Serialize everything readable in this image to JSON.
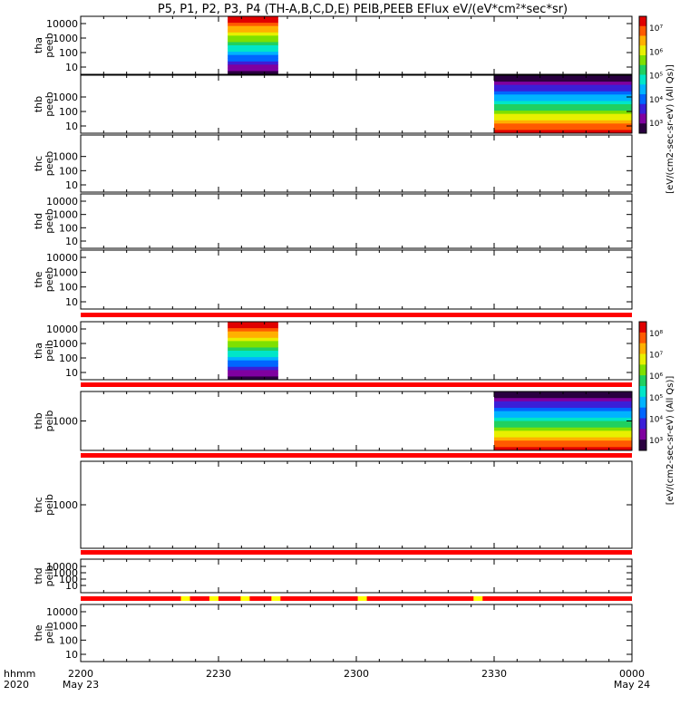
{
  "chart_data": {
    "type": "heatmap",
    "title": "P5, P1, P2, P3, P4 (TH-A,B,C,D,E) PEIB,PEEB EFlux eV/(eV*cm²*sec*sr)",
    "x_tick_labels": [
      "2200",
      "2230",
      "2300",
      "2330",
      "0000"
    ],
    "x_tick_values": [
      0,
      30,
      60,
      90,
      120
    ],
    "x_date_labels": [
      {
        "at": 0,
        "text": "May 23"
      },
      {
        "at": 120,
        "text": "May 24"
      }
    ],
    "time_axis_labels": {
      "top": "hhmm",
      "bottom": "2020"
    },
    "xlim": [
      0,
      120
    ],
    "panels": [
      {
        "id": "tha_peeb",
        "probe": "tha",
        "instrument": "peeb",
        "y_ticks": [
          "10000",
          "1000",
          "100",
          "10"
        ],
        "y_values": [
          10000,
          1000,
          100,
          10
        ],
        "ylog": true,
        "data_span": [
          32,
          43
        ]
      },
      {
        "id": "thb_peeb",
        "probe": "thb",
        "instrument": "peeb",
        "y_ticks": [
          "1000",
          "100",
          "10"
        ],
        "y_values": [
          1000,
          100,
          10
        ],
        "ylog": true,
        "data_span": [
          90,
          120
        ]
      },
      {
        "id": "thc_peeb",
        "probe": "thc",
        "instrument": "peeb",
        "y_ticks": [
          "1000",
          "100",
          "10"
        ],
        "y_values": [
          1000,
          100,
          10
        ],
        "ylog": true,
        "data_span": null
      },
      {
        "id": "thd_peeb",
        "probe": "thd",
        "instrument": "peeb",
        "y_ticks": [
          "10000",
          "1000",
          "100",
          "10"
        ],
        "y_values": [
          10000,
          1000,
          100,
          10
        ],
        "ylog": true,
        "data_span": null
      },
      {
        "id": "the_peeb",
        "probe": "the",
        "instrument": "peeb",
        "y_ticks": [
          "10000",
          "1000",
          "100",
          "10"
        ],
        "y_values": [
          10000,
          1000,
          100,
          10
        ],
        "ylog": true,
        "data_span": null
      },
      {
        "id": "tha_peib",
        "probe": "tha",
        "instrument": "peib",
        "y_ticks": [
          "10000",
          "1000",
          "100",
          "10"
        ],
        "y_values": [
          10000,
          1000,
          100,
          10
        ],
        "ylog": true,
        "data_span": [
          32,
          43
        ]
      },
      {
        "id": "thb_peib",
        "probe": "thb",
        "instrument": "peib",
        "y_ticks": [
          "1000"
        ],
        "y_values": [
          1000
        ],
        "ylog": true,
        "data_span": [
          90,
          120
        ]
      },
      {
        "id": "thc_peib",
        "probe": "thc",
        "instrument": "peib",
        "y_ticks": [
          "1000"
        ],
        "y_values": [
          1000
        ],
        "ylog": true,
        "data_span": null
      },
      {
        "id": "thd_peib",
        "probe": "thd",
        "instrument": "peib",
        "y_ticks": [
          "10000",
          "1000",
          "100",
          "10"
        ],
        "y_values": [
          10000,
          1000,
          100,
          10
        ],
        "ylog": true,
        "data_span": null
      },
      {
        "id": "the_peib",
        "probe": "the",
        "instrument": "peib",
        "y_ticks": [
          "10000",
          "1000",
          "100",
          "10"
        ],
        "y_values": [
          10000,
          1000,
          100,
          10
        ],
        "ylog": true,
        "data_span": null
      }
    ],
    "flag_bars": [
      {
        "after_panel": "the_peeb",
        "color": "#ff0000",
        "highlights": []
      },
      {
        "after_panel": "tha_peib",
        "color": "#ff0000",
        "highlights": []
      },
      {
        "after_panel": "thb_peib",
        "color": "#ff0000",
        "highlights": []
      },
      {
        "after_panel": "thc_peib",
        "color": "#ff0000",
        "highlights": []
      },
      {
        "after_panel": "thd_peib",
        "color": "#ff0000",
        "highlights": [
          {
            "t": 22.8,
            "color": "#ffff00"
          },
          {
            "t": 29.0,
            "color": "#ffff00"
          },
          {
            "t": 35.8,
            "color": "#ffff00"
          },
          {
            "t": 42.5,
            "color": "#ffff00"
          },
          {
            "t": 61.3,
            "color": "#ffff00"
          },
          {
            "t": 86.5,
            "color": "#ffff00"
          }
        ]
      }
    ],
    "colorbars": [
      {
        "label": "[eV/(cm2-sec-sr-eV) (All Qs)]",
        "ticks": [
          "10⁷",
          "10⁶",
          "10⁵",
          "10⁴",
          "10³"
        ],
        "overlay_ticks": [
          "10⁸",
          "10⁷",
          "10⁶",
          "10⁵",
          "10⁴",
          "10³"
        ],
        "overlay_label": "[eV/(cm2-sec-sr-eV) (All Qs)]"
      },
      {
        "label": "[eV/(cm2-sec-sr-eV) (All Qs)]",
        "ticks": [
          "10⁸",
          "10⁷",
          "10⁶",
          "10⁵",
          "10⁴",
          "10³"
        ],
        "overlay_ticks": [
          "10⁶",
          "10⁵",
          "10⁴"
        ],
        "overlay_label": "[eV/(cm2-sec-sr-eV) (All Qs)]"
      }
    ]
  },
  "colors": {
    "flag_red": "#ff0000",
    "flag_yellow": "#ffff00",
    "frame": "#000000",
    "colormap": [
      "#2a0040",
      "#7f00a0",
      "#3a1fd8",
      "#0066ff",
      "#00b3ff",
      "#00e6c8",
      "#20d060",
      "#7fe000",
      "#e8f000",
      "#ffb000",
      "#ff5a00",
      "#e00000"
    ]
  }
}
